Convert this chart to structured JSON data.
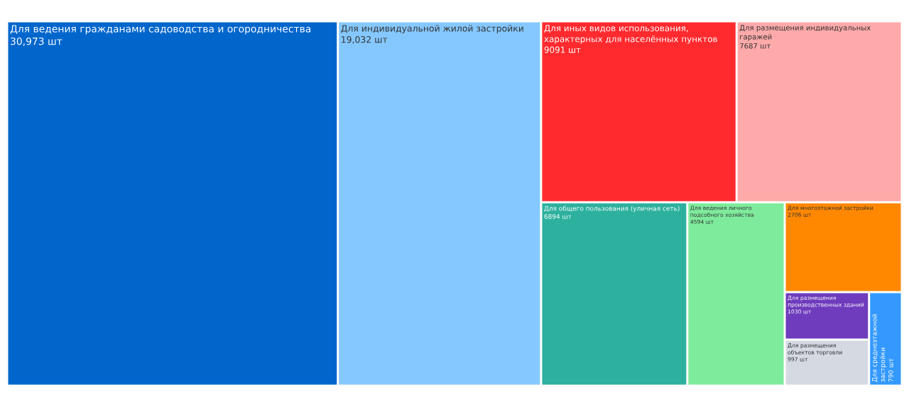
{
  "chart_data": {
    "type": "other",
    "categories": [
      "Для ведения гражданами садоводства и огородничества",
      "Для индивидуальной жилой застройки",
      "Для иных видов использования, характерных для населённых пунктов",
      "Для размещения индивидуальных гаражей",
      "Для общего пользования (уличная сеть)",
      "Для ведения личного подсобного хозяйства",
      "Для многоэтажной застройки",
      "Для размещения производственных зданий",
      "Для размещения объектов торговли",
      "Для среднеэтажной застройки"
    ],
    "values": [
      30973,
      19032,
      9091,
      7687,
      6894,
      4594,
      2706,
      1030,
      997,
      790
    ],
    "value_labels": [
      "30,973 шт",
      "19,032 шт",
      "9091 шт",
      "7687 шт",
      "6894 шт",
      "4594 шт",
      "2706 шт",
      "1030 шт",
      "997 шт",
      "790 шт"
    ],
    "colors": [
      "#0066cc",
      "#85c8ff",
      "#ff2a2e",
      "#ffaaaa",
      "#2db19e",
      "#7eeb9c",
      "#ff8800",
      "#6e3cbc",
      "#d5d9e2",
      "#3399ff"
    ]
  }
}
